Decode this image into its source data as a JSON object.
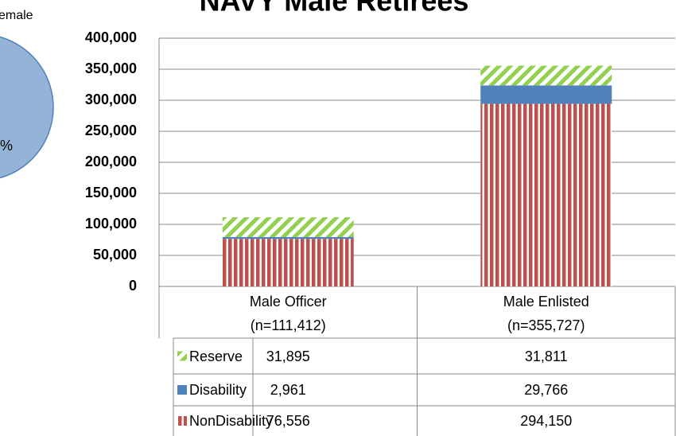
{
  "chart_data": {
    "type": "stacked_bar",
    "title": "NAVY Male Retirees",
    "inset_texts": [
      "emale",
      "%"
    ],
    "categories": [
      "Male Officer\n(n=111,412)",
      "Male Enlisted\n(n=355,727)"
    ],
    "series": [
      {
        "name": "Reserve",
        "color": "#92d050",
        "pattern": "diagonal",
        "values": [
          31895,
          31811
        ],
        "value_labels": [
          "31,895",
          "31,811"
        ]
      },
      {
        "name": "Disability",
        "color": "#4f81bd",
        "pattern": "solid",
        "values": [
          2961,
          29766
        ],
        "value_labels": [
          "2,961",
          "29,766"
        ]
      },
      {
        "name": "NonDisability",
        "color": "#c0504d",
        "pattern": "vertical",
        "values": [
          76556,
          294150
        ],
        "value_labels": [
          "76,556",
          "294,150"
        ]
      }
    ],
    "ylim": [
      0,
      400000
    ],
    "yticks": [
      0,
      {
        "value": 50000,
        "label": "50,000"
      },
      {
        "value": 100000,
        "label": "100,000"
      },
      {
        "value": 150000,
        "label": "150,000"
      },
      {
        "value": 200000,
        "label": "200,000"
      },
      {
        "value": 250000,
        "label": "250,000"
      },
      {
        "value": 300000,
        "label": "300,000"
      },
      {
        "value": 350000,
        "label": "350,000"
      },
      {
        "value": 400000,
        "label": "400,000"
      }
    ],
    "grid": true
  }
}
